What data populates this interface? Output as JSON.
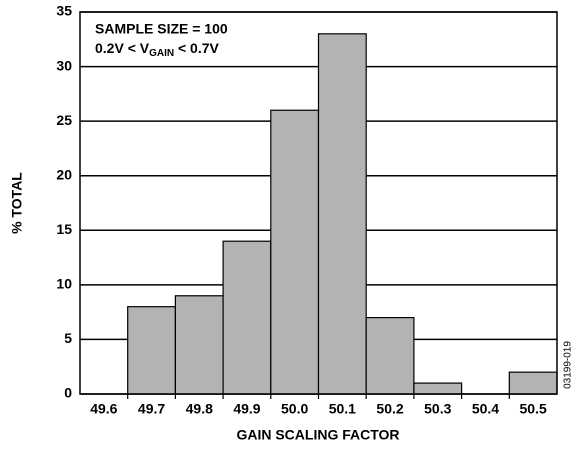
{
  "chart_data": {
    "type": "bar",
    "x_label": "GAIN SCALING FACTOR",
    "y_label": "% TOTAL",
    "figure_id": "03199-019",
    "annotations": [
      "SAMPLE SIZE = 100",
      [
        "0.2V < V",
        "GAIN",
        " < 0.7V"
      ]
    ],
    "categories": [
      "49.6",
      "49.7",
      "49.8",
      "49.9",
      "50.0",
      "50.1",
      "50.2",
      "50.3",
      "50.4",
      "50.5"
    ],
    "values": [
      0,
      8,
      9,
      14,
      26,
      33,
      7,
      1,
      0,
      2
    ],
    "color": "#b3b3b3",
    "ylim": [
      0,
      35
    ],
    "yticks": [
      0,
      5,
      10,
      15,
      20,
      25,
      30,
      35
    ],
    "grid": true
  }
}
